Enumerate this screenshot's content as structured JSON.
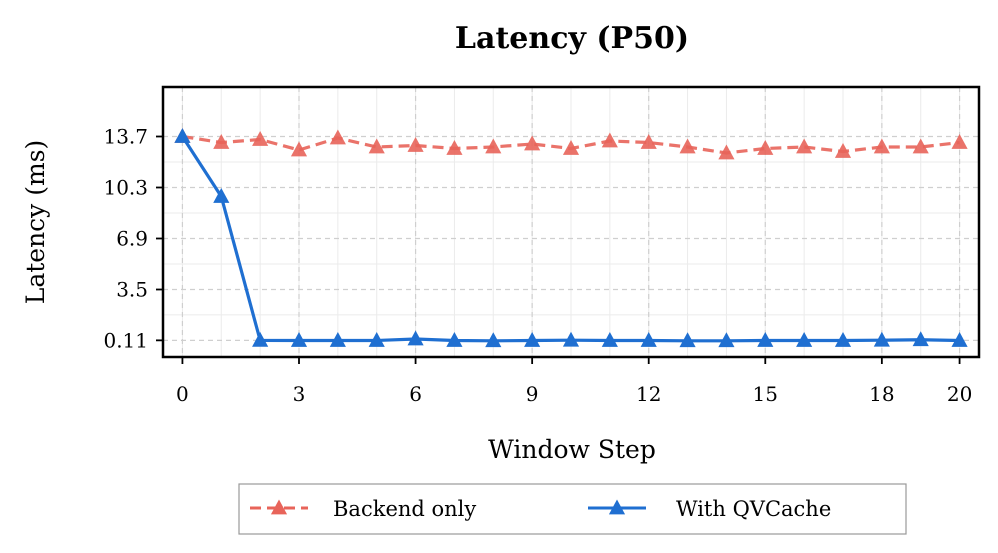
{
  "chart_data": {
    "type": "line",
    "title": "Latency (P50)",
    "xlabel": "Window Step",
    "ylabel": "Latency (ms)",
    "x": [
      0,
      1,
      2,
      3,
      4,
      5,
      6,
      7,
      8,
      9,
      10,
      11,
      12,
      13,
      14,
      15,
      16,
      17,
      18,
      19,
      20
    ],
    "xticks": [
      0,
      3,
      6,
      9,
      12,
      15,
      18,
      20
    ],
    "xtick_labels": [
      "0",
      "3",
      "6",
      "9",
      "12",
      "15",
      "18",
      "20"
    ],
    "yticks": [
      0.11,
      3.5,
      6.9,
      10.3,
      13.7
    ],
    "ytick_labels": [
      "0.11",
      "3.5",
      "6.9",
      "10.3",
      "13.7"
    ],
    "xlim": [
      -0.5,
      20.5
    ],
    "ylim": [
      -1.0,
      17.0
    ],
    "grid": true,
    "legend_position": "bottom-center-outside",
    "series": [
      {
        "name": "Backend only",
        "color": "#e8645a",
        "line_style": "dashed",
        "marker": "triangle-up",
        "values": [
          13.7,
          13.3,
          13.5,
          12.8,
          13.6,
          13.0,
          13.1,
          12.9,
          13.0,
          13.2,
          12.9,
          13.4,
          13.3,
          13.0,
          12.6,
          12.9,
          13.0,
          12.7,
          13.0,
          13.0,
          13.3
        ]
      },
      {
        "name": "With QVCache",
        "color": "#1f6fd1",
        "line_style": "solid",
        "marker": "triangle-up",
        "values": [
          13.7,
          9.7,
          0.11,
          0.1,
          0.1,
          0.1,
          0.2,
          0.1,
          0.08,
          0.1,
          0.12,
          0.1,
          0.1,
          0.08,
          0.08,
          0.1,
          0.1,
          0.1,
          0.12,
          0.15,
          0.1
        ]
      }
    ]
  }
}
